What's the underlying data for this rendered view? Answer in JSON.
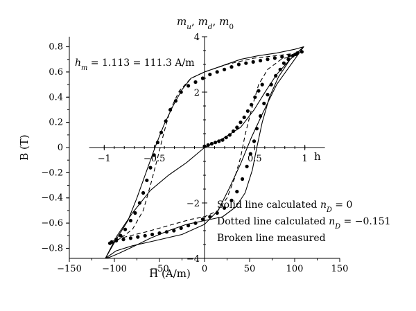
{
  "chart_data": {
    "type": "line",
    "xlabel": "H (A/m)",
    "ylabel": "B (T)",
    "top_label": "m_u, m_d, m_0",
    "inner_xlabel": "h",
    "annotation": "h_m = 1.113 = 111.3 A/m",
    "legend": [
      "Solid line calculated n_D = 0",
      "Dotted line calculated n_D = −0.151",
      "Broken line measured"
    ],
    "legend_position": "bottom-right",
    "xlim": [
      -150,
      150
    ],
    "ylim": [
      -0.88,
      0.88
    ],
    "xticks": [
      -150,
      -100,
      -50,
      0,
      50,
      100,
      150
    ],
    "xtick_labels": [
      "−150",
      "−100",
      "−50",
      "0",
      "50",
      "100",
      "150"
    ],
    "yticks": [
      -0.8,
      -0.6,
      -0.4,
      -0.2,
      0,
      0.2,
      0.4,
      0.6,
      0.8
    ],
    "ytick_labels": [
      "−0.8",
      "−0.6",
      "−0.4",
      "−0.2",
      "0",
      "0.2",
      "0.4",
      "0.6",
      "0.8"
    ],
    "inner_xticks": [
      -1,
      -0.5,
      0.5,
      1
    ],
    "inner_xtick_labels": [
      "−1",
      "−0.5",
      "0.5",
      "1"
    ],
    "inner_yticks": [
      -4,
      -2,
      2,
      4
    ],
    "inner_ytick_labels": [
      "−4",
      "−2",
      "2",
      "4"
    ],
    "series": [
      {
        "style": "solid-outer",
        "points": [
          [
            -110,
            -0.88
          ],
          [
            -105,
            -0.87
          ],
          [
            -95,
            -0.84
          ],
          [
            -80,
            -0.79
          ],
          [
            -60,
            -0.72
          ],
          [
            -40,
            -0.66
          ],
          [
            -20,
            -0.61
          ],
          [
            0,
            -0.58
          ],
          [
            20,
            -0.55
          ],
          [
            35,
            -0.47
          ],
          [
            45,
            -0.36
          ],
          [
            53,
            -0.18
          ],
          [
            58,
            0.0
          ],
          [
            64,
            0.2
          ],
          [
            72,
            0.4
          ],
          [
            82,
            0.56
          ],
          [
            95,
            0.7
          ],
          [
            110,
            0.8
          ],
          [
            100,
            0.78
          ],
          [
            80,
            0.75
          ],
          [
            60,
            0.73
          ],
          [
            40,
            0.7
          ],
          [
            20,
            0.65
          ],
          [
            0,
            0.6
          ],
          [
            -15,
            0.55
          ],
          [
            -25,
            0.46
          ],
          [
            -35,
            0.33
          ],
          [
            -45,
            0.18
          ],
          [
            -55,
            0.0
          ],
          [
            -65,
            -0.2
          ],
          [
            -75,
            -0.4
          ],
          [
            -85,
            -0.58
          ],
          [
            -98,
            -0.73
          ],
          [
            -110,
            -0.88
          ]
        ]
      },
      {
        "style": "solid-inner",
        "points": [
          [
            -110,
            -0.88
          ],
          [
            -97,
            -0.7
          ],
          [
            -80,
            -0.52
          ],
          [
            -60,
            -0.34
          ],
          [
            -40,
            -0.22
          ],
          [
            -20,
            -0.12
          ],
          [
            0,
            0.0
          ],
          [
            20,
            0.07
          ],
          [
            40,
            0.16
          ],
          [
            55,
            0.3
          ],
          [
            68,
            0.45
          ],
          [
            80,
            0.58
          ],
          [
            95,
            0.7
          ],
          [
            110,
            0.8
          ],
          [
            80,
            0.5
          ],
          [
            65,
            0.28
          ],
          [
            52,
            0.08
          ],
          [
            40,
            -0.13
          ],
          [
            27,
            -0.33
          ],
          [
            15,
            -0.5
          ],
          [
            0,
            -0.61
          ],
          [
            -25,
            -0.69
          ],
          [
            -55,
            -0.74
          ],
          [
            -80,
            -0.78
          ],
          [
            -98,
            -0.82
          ],
          [
            -110,
            -0.88
          ]
        ]
      },
      {
        "style": "dashed",
        "points": [
          [
            -105,
            -0.75
          ],
          [
            -88,
            -0.71
          ],
          [
            -65,
            -0.67
          ],
          [
            -40,
            -0.62
          ],
          [
            -15,
            -0.57
          ],
          [
            0,
            -0.55
          ],
          [
            15,
            -0.5
          ],
          [
            25,
            -0.4
          ],
          [
            33,
            -0.25
          ],
          [
            40,
            -0.08
          ],
          [
            45,
            0.1
          ],
          [
            52,
            0.3
          ],
          [
            60,
            0.5
          ],
          [
            70,
            0.62
          ],
          [
            85,
            0.7
          ],
          [
            98,
            0.73
          ],
          [
            103,
            0.75
          ],
          [
            80,
            0.73
          ],
          [
            55,
            0.71
          ],
          [
            25,
            0.66
          ],
          [
            0,
            0.6
          ],
          [
            -15,
            0.55
          ],
          [
            -28,
            0.45
          ],
          [
            -38,
            0.3
          ],
          [
            -45,
            0.12
          ],
          [
            -52,
            -0.08
          ],
          [
            -60,
            -0.3
          ],
          [
            -68,
            -0.5
          ],
          [
            -80,
            -0.65
          ],
          [
            -95,
            -0.73
          ],
          [
            -105,
            -0.75
          ]
        ]
      },
      {
        "style": "markers",
        "points": [
          [
            -105,
            -0.76
          ],
          [
            -98,
            -0.74
          ],
          [
            -90,
            -0.73
          ],
          [
            -82,
            -0.72
          ],
          [
            -74,
            -0.71
          ],
          [
            -66,
            -0.7
          ],
          [
            -58,
            -0.69
          ],
          [
            -50,
            -0.68
          ],
          [
            -42,
            -0.67
          ],
          [
            -34,
            -0.66
          ],
          [
            -26,
            -0.64
          ],
          [
            -18,
            -0.62
          ],
          [
            -10,
            -0.6
          ],
          [
            -2,
            -0.57
          ],
          [
            6,
            -0.55
          ],
          [
            14,
            -0.52
          ],
          [
            22,
            -0.48
          ],
          [
            30,
            -0.42
          ],
          [
            36,
            -0.35
          ],
          [
            42,
            -0.25
          ],
          [
            47,
            -0.15
          ],
          [
            51,
            -0.05
          ],
          [
            55,
            0.05
          ],
          [
            58,
            0.15
          ],
          [
            62,
            0.25
          ],
          [
            66,
            0.35
          ],
          [
            70,
            0.42
          ],
          [
            74,
            0.5
          ],
          [
            79,
            0.57
          ],
          [
            84,
            0.62
          ],
          [
            88,
            0.67
          ],
          [
            93,
            0.7
          ],
          [
            98,
            0.73
          ],
          [
            103,
            0.75
          ],
          [
            108,
            0.76
          ],
          [
            101,
            0.74
          ],
          [
            94,
            0.73
          ],
          [
            86,
            0.72
          ],
          [
            78,
            0.71
          ],
          [
            70,
            0.7
          ],
          [
            62,
            0.69
          ],
          [
            54,
            0.68
          ],
          [
            46,
            0.67
          ],
          [
            38,
            0.66
          ],
          [
            30,
            0.64
          ],
          [
            22,
            0.62
          ],
          [
            14,
            0.6
          ],
          [
            6,
            0.58
          ],
          [
            -2,
            0.55
          ],
          [
            -10,
            0.52
          ],
          [
            -18,
            0.49
          ],
          [
            -26,
            0.44
          ],
          [
            -32,
            0.37
          ],
          [
            -38,
            0.3
          ],
          [
            -43,
            0.21
          ],
          [
            -48,
            0.12
          ],
          [
            -52,
            0.04
          ],
          [
            -56,
            -0.06
          ],
          [
            -60,
            -0.16
          ],
          [
            -64,
            -0.26
          ],
          [
            -68,
            -0.36
          ],
          [
            -72,
            -0.44
          ],
          [
            -77,
            -0.52
          ],
          [
            -82,
            -0.58
          ],
          [
            -88,
            -0.65
          ],
          [
            -93,
            -0.7
          ],
          [
            -98,
            -0.73
          ],
          [
            -103,
            -0.75
          ],
          [
            0,
            0.01
          ],
          [
            4,
            0.02
          ],
          [
            8,
            0.03
          ],
          [
            12,
            0.04
          ],
          [
            16,
            0.05
          ],
          [
            20,
            0.06
          ],
          [
            24,
            0.08
          ],
          [
            28,
            0.1
          ],
          [
            32,
            0.13
          ],
          [
            36,
            0.16
          ],
          [
            40,
            0.2
          ],
          [
            44,
            0.24
          ],
          [
            48,
            0.29
          ],
          [
            52,
            0.34
          ],
          [
            56,
            0.4
          ],
          [
            60,
            0.45
          ],
          [
            64,
            0.5
          ]
        ]
      }
    ]
  }
}
